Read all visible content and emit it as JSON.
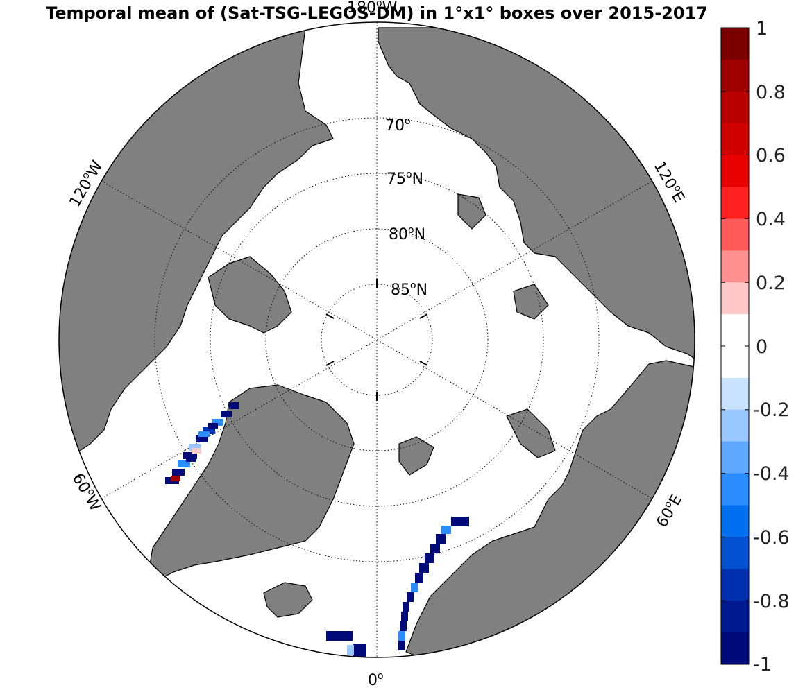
{
  "title": "Temporal mean of (Sat-TSG-LEGOS-DM) in 1°x1° boxes over 2015-2017",
  "map": {
    "projection": "north polar stereographic",
    "land_color": "#808080",
    "ocean_color": "#ffffff",
    "latitude_labels": [
      {
        "deg": "70",
        "unit": "o",
        "hemi": ""
      },
      {
        "deg": "75",
        "unit": "o",
        "hemi": "N"
      },
      {
        "deg": "80",
        "unit": "o",
        "hemi": "N"
      },
      {
        "deg": "85",
        "unit": "o",
        "hemi": "N"
      }
    ],
    "longitude_labels": [
      {
        "deg": "180",
        "unit": "o",
        "hemi": "W"
      },
      {
        "deg": "120",
        "unit": "o",
        "hemi": "W"
      },
      {
        "deg": "60",
        "unit": "o",
        "hemi": "W"
      },
      {
        "deg": "0",
        "unit": "o",
        "hemi": ""
      },
      {
        "deg": "60",
        "unit": "o",
        "hemi": "E"
      },
      {
        "deg": "120",
        "unit": "o",
        "hemi": "E"
      }
    ]
  },
  "colorbar": {
    "ticks": [
      "1",
      "0.8",
      "0.6",
      "0.4",
      "0.2",
      "0",
      "-0.2",
      "-0.4",
      "-0.6",
      "-0.8",
      "-1"
    ],
    "range": [
      -1,
      1
    ],
    "colors_top_to_bottom": [
      "#7a0000",
      "#9e0000",
      "#b80000",
      "#d00000",
      "#e80000",
      "#ff2020",
      "#ff5a5a",
      "#ff9090",
      "#ffc8c8",
      "#ffffff",
      "#ffffff",
      "#c8e2ff",
      "#98c8ff",
      "#60a8ff",
      "#2a8cff",
      "#0070f0",
      "#0050d0",
      "#0030b0",
      "#001890",
      "#000a78"
    ]
  }
}
